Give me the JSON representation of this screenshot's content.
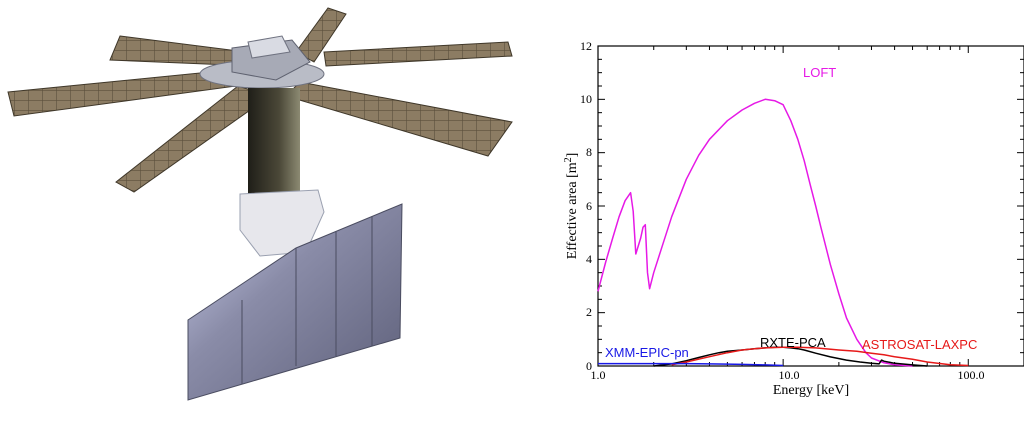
{
  "chart_data": {
    "type": "line",
    "title": "",
    "xlabel": "Energy  [keV]",
    "ylabel": "Effective area  [m",
    "ylabel_sup": "2",
    "ylabel_close": "]",
    "xscale": "log",
    "xlim": [
      1.0,
      200.0
    ],
    "ylim": [
      0,
      12
    ],
    "x_tick_labels": [
      "1.0",
      "10.0",
      "100.0"
    ],
    "y_tick_labels": [
      "0",
      "2",
      "4",
      "6",
      "8",
      "10",
      "12"
    ],
    "grid": false,
    "legend": "labels placed next to curves",
    "series": [
      {
        "name": "LOFT",
        "color": "#e619e6",
        "x": [
          1.0,
          1.1,
          1.2,
          1.3,
          1.4,
          1.5,
          1.55,
          1.6,
          1.7,
          1.75,
          1.8,
          1.85,
          1.9,
          2.0,
          2.2,
          2.5,
          3.0,
          3.5,
          4.0,
          5.0,
          6.0,
          7.0,
          8.0,
          9.0,
          10.0,
          11.0,
          12.0,
          13.0,
          14.0,
          15.0,
          16.0,
          18.0,
          20.0,
          22.0,
          25.0,
          28.0,
          30.0,
          35.0,
          40.0,
          50.0
        ],
        "y": [
          2.8,
          3.9,
          4.8,
          5.6,
          6.2,
          6.5,
          5.8,
          4.2,
          4.8,
          5.2,
          5.3,
          3.5,
          2.9,
          3.5,
          4.4,
          5.6,
          7.0,
          7.9,
          8.5,
          9.2,
          9.6,
          9.85,
          10.0,
          9.95,
          9.8,
          9.2,
          8.5,
          7.7,
          6.8,
          6.0,
          5.2,
          3.8,
          2.7,
          1.8,
          1.0,
          0.5,
          0.3,
          0.12,
          0.05,
          0.0
        ]
      },
      {
        "name": "RXTE-PCA",
        "color": "#000000",
        "x": [
          2.0,
          2.5,
          3.0,
          3.5,
          4.0,
          4.5,
          5.0,
          6.0,
          7.0,
          8.0,
          9.0,
          10.0,
          11.0,
          12.0,
          13.0,
          15.0,
          18.0,
          22.0,
          26.0,
          30.0,
          33.0,
          34.0,
          35.0,
          40.0,
          50.0,
          60.0
        ],
        "y": [
          0.0,
          0.08,
          0.2,
          0.32,
          0.42,
          0.5,
          0.55,
          0.6,
          0.65,
          0.68,
          0.7,
          0.7,
          0.68,
          0.65,
          0.6,
          0.48,
          0.34,
          0.22,
          0.15,
          0.1,
          0.08,
          0.22,
          0.18,
          0.1,
          0.04,
          0.0
        ]
      },
      {
        "name": "ASTROSAT-LAXPC",
        "color": "#e61919",
        "x": [
          2.5,
          3.0,
          4.0,
          5.0,
          6.0,
          7.0,
          8.0,
          10.0,
          12.0,
          15.0,
          20.0,
          25.0,
          30.0,
          35.0,
          40.0,
          50.0,
          60.0,
          80.0,
          100.0
        ],
        "y": [
          0.05,
          0.15,
          0.35,
          0.5,
          0.6,
          0.65,
          0.68,
          0.7,
          0.7,
          0.68,
          0.6,
          0.55,
          0.48,
          0.42,
          0.35,
          0.25,
          0.15,
          0.05,
          0.02
        ]
      },
      {
        "name": "XMM-EPIC-pn",
        "color": "#1919e6",
        "x": [
          1.0,
          2.0,
          3.0,
          4.0,
          5.0,
          6.0,
          8.0,
          10.0
        ],
        "y": [
          0.09,
          0.09,
          0.09,
          0.08,
          0.07,
          0.06,
          0.04,
          0.02
        ]
      }
    ]
  },
  "illustration": {
    "panel_color": "#8c7c63",
    "cell_line_color": "#5b4f3c",
    "mast_color": "#3d3b30",
    "detector_panel_color": "#7d7f99"
  }
}
